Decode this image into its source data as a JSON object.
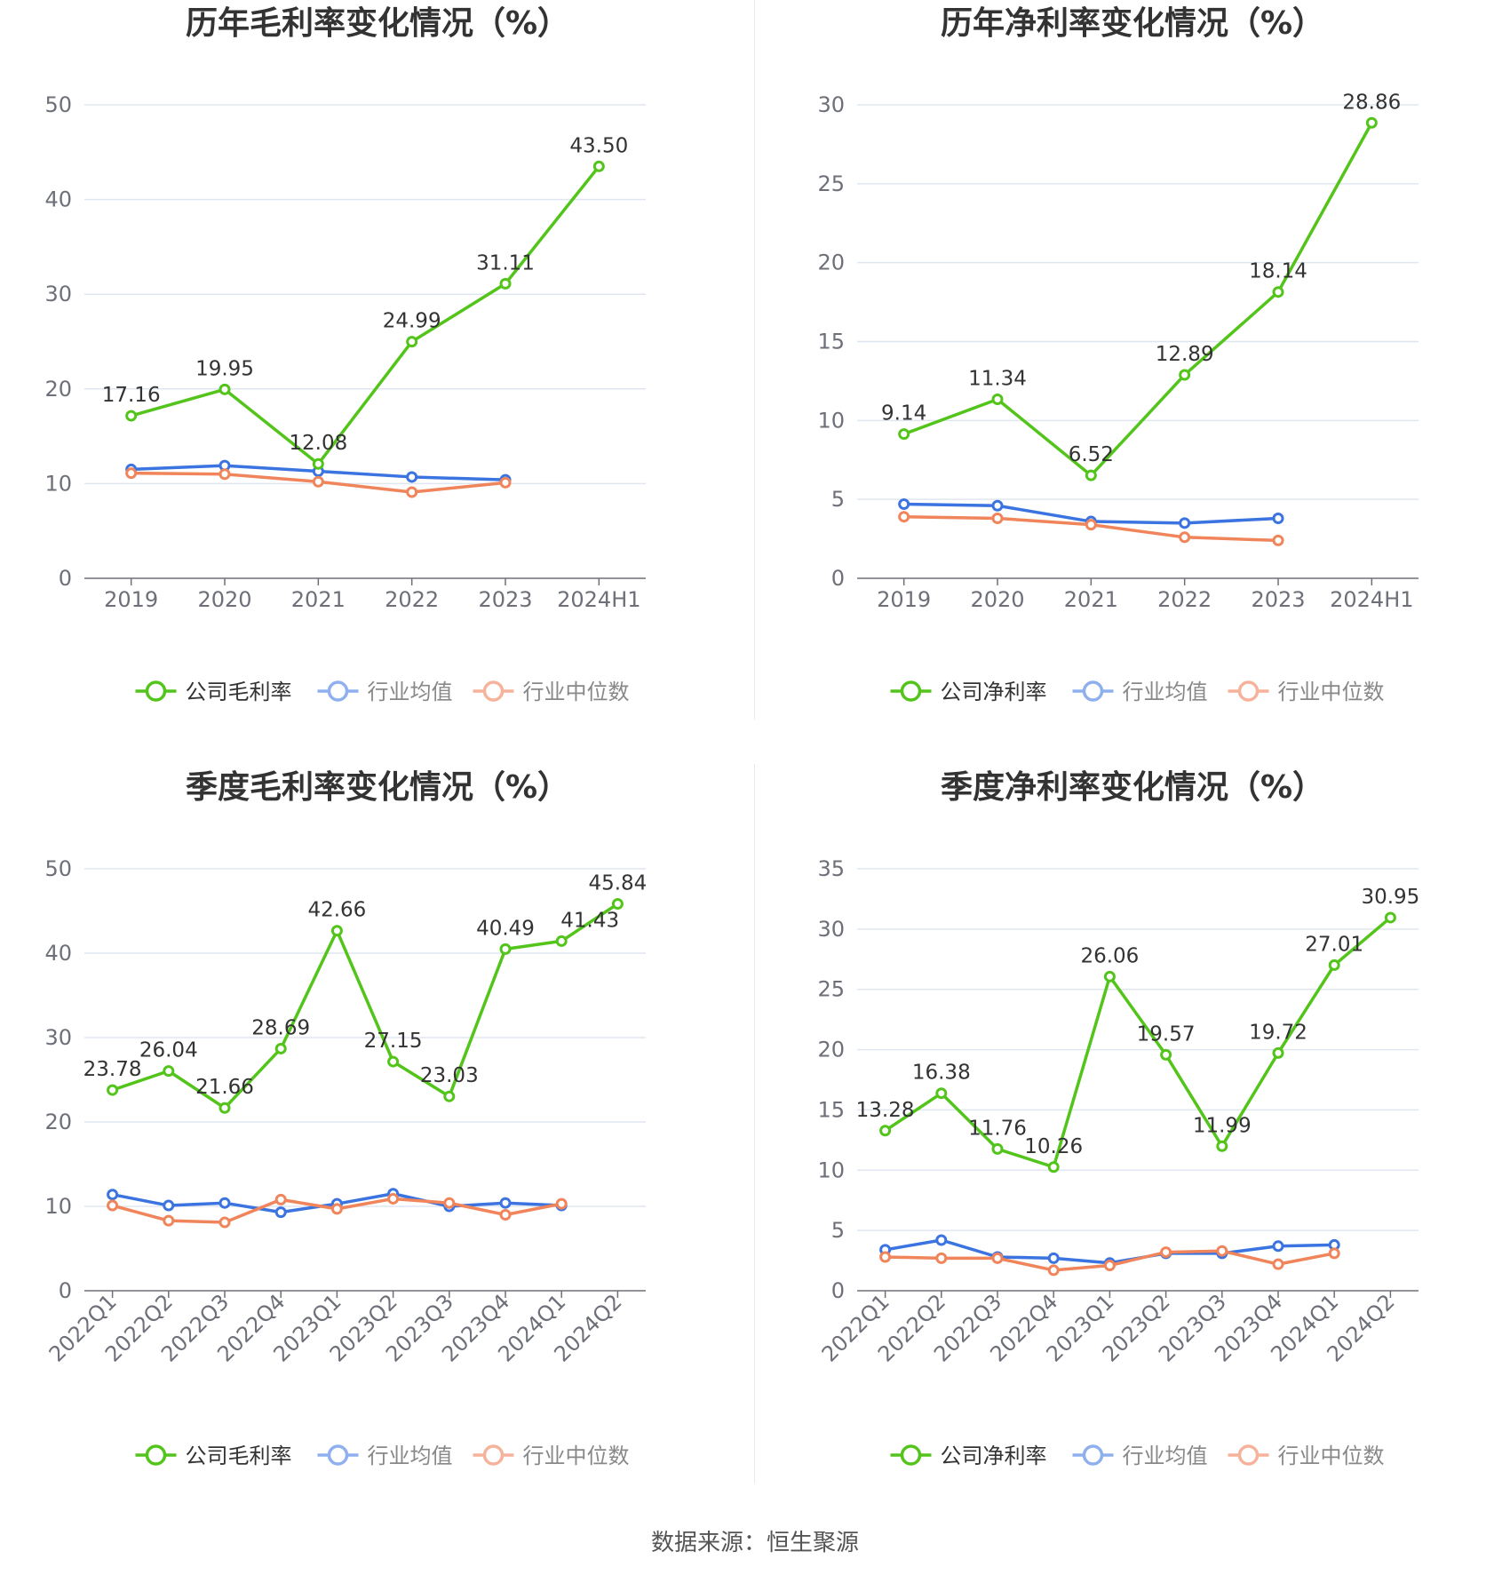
{
  "chart_data": [
    {
      "type": "line",
      "title": "历年毛利率变化情况（%）",
      "categories": [
        "2019",
        "2020",
        "2021",
        "2022",
        "2023",
        "2024H1"
      ],
      "ylim": [
        0,
        50
      ],
      "yticks": [
        0,
        10,
        20,
        30,
        40,
        50
      ],
      "grid": true,
      "legend_position": "bottom",
      "series": [
        {
          "name": "公司毛利率",
          "color": "#52c41a",
          "values": [
            17.16,
            19.95,
            12.08,
            24.99,
            31.11,
            43.5
          ],
          "labels": [
            "17.16",
            "19.95",
            "12.08",
            "24.99",
            "31.11",
            "43.50"
          ]
        },
        {
          "name": "行业均值",
          "color": "#3b74e0",
          "values": [
            11.5,
            11.9,
            11.3,
            10.7,
            10.4,
            null
          ]
        },
        {
          "name": "行业中位数",
          "color": "#f0845a",
          "values": [
            11.1,
            11.0,
            10.2,
            9.1,
            10.1,
            null
          ]
        }
      ]
    },
    {
      "type": "line",
      "title": "历年净利率变化情况（%）",
      "categories": [
        "2019",
        "2020",
        "2021",
        "2022",
        "2023",
        "2024H1"
      ],
      "ylim": [
        0,
        30
      ],
      "yticks": [
        0,
        5,
        10,
        15,
        20,
        25,
        30
      ],
      "grid": true,
      "legend_position": "bottom",
      "series": [
        {
          "name": "公司净利率",
          "color": "#52c41a",
          "values": [
            9.14,
            11.34,
            6.52,
            12.89,
            18.14,
            28.86
          ],
          "labels": [
            "9.14",
            "11.34",
            "6.52",
            "12.89",
            "18.14",
            "28.86"
          ]
        },
        {
          "name": "行业均值",
          "color": "#3b74e0",
          "values": [
            4.7,
            4.6,
            3.6,
            3.5,
            3.8,
            null
          ]
        },
        {
          "name": "行业中位数",
          "color": "#f0845a",
          "values": [
            3.9,
            3.8,
            3.4,
            2.6,
            2.4,
            null
          ]
        }
      ]
    },
    {
      "type": "line",
      "title": "季度毛利率变化情况（%）",
      "categories": [
        "2022Q1",
        "2022Q2",
        "2022Q3",
        "2022Q4",
        "2023Q1",
        "2023Q2",
        "2023Q3",
        "2023Q4",
        "2024Q1",
        "2024Q2"
      ],
      "ylim": [
        0,
        50
      ],
      "yticks": [
        0,
        10,
        20,
        30,
        40,
        50
      ],
      "grid": true,
      "legend_position": "bottom",
      "series": [
        {
          "name": "公司毛利率",
          "color": "#52c41a",
          "values": [
            23.78,
            26.04,
            21.66,
            28.69,
            42.66,
            27.15,
            23.03,
            40.49,
            41.43,
            45.84
          ],
          "labels": [
            "23.78",
            "26.04",
            "21.66",
            "28.69",
            "42.66",
            "27.15",
            "23.03",
            "40.49",
            "41.43",
            "45.84"
          ]
        },
        {
          "name": "行业均值",
          "color": "#3b74e0",
          "values": [
            11.4,
            10.1,
            10.4,
            9.3,
            10.3,
            11.5,
            10.0,
            10.4,
            10.1,
            null
          ]
        },
        {
          "name": "行业中位数",
          "color": "#f0845a",
          "values": [
            10.1,
            8.3,
            8.1,
            10.8,
            9.7,
            10.9,
            10.4,
            9.0,
            10.3,
            null
          ]
        }
      ]
    },
    {
      "type": "line",
      "title": "季度净利率变化情况（%）",
      "categories": [
        "2022Q1",
        "2022Q2",
        "2022Q3",
        "2022Q4",
        "2023Q1",
        "2023Q2",
        "2023Q3",
        "2023Q4",
        "2024Q1",
        "2024Q2"
      ],
      "ylim": [
        0,
        35
      ],
      "yticks": [
        0,
        5,
        10,
        15,
        20,
        25,
        30,
        35
      ],
      "grid": true,
      "legend_position": "bottom",
      "series": [
        {
          "name": "公司净利率",
          "color": "#52c41a",
          "values": [
            13.28,
            16.38,
            11.76,
            10.26,
            26.06,
            19.57,
            11.99,
            19.72,
            27.01,
            30.95
          ],
          "labels": [
            "13.28",
            "16.38",
            "11.76",
            "10.26",
            "26.06",
            "19.57",
            "11.99",
            "19.72",
            "27.01",
            "30.95"
          ]
        },
        {
          "name": "行业均值",
          "color": "#3b74e0",
          "values": [
            3.4,
            4.2,
            2.8,
            2.7,
            2.3,
            3.1,
            3.1,
            3.7,
            3.8,
            null
          ]
        },
        {
          "name": "行业中位数",
          "color": "#f0845a",
          "values": [
            2.8,
            2.7,
            2.7,
            1.7,
            2.1,
            3.2,
            3.3,
            2.2,
            3.1,
            null
          ]
        }
      ]
    }
  ],
  "footer": {
    "source": "数据来源：恒生聚源"
  }
}
